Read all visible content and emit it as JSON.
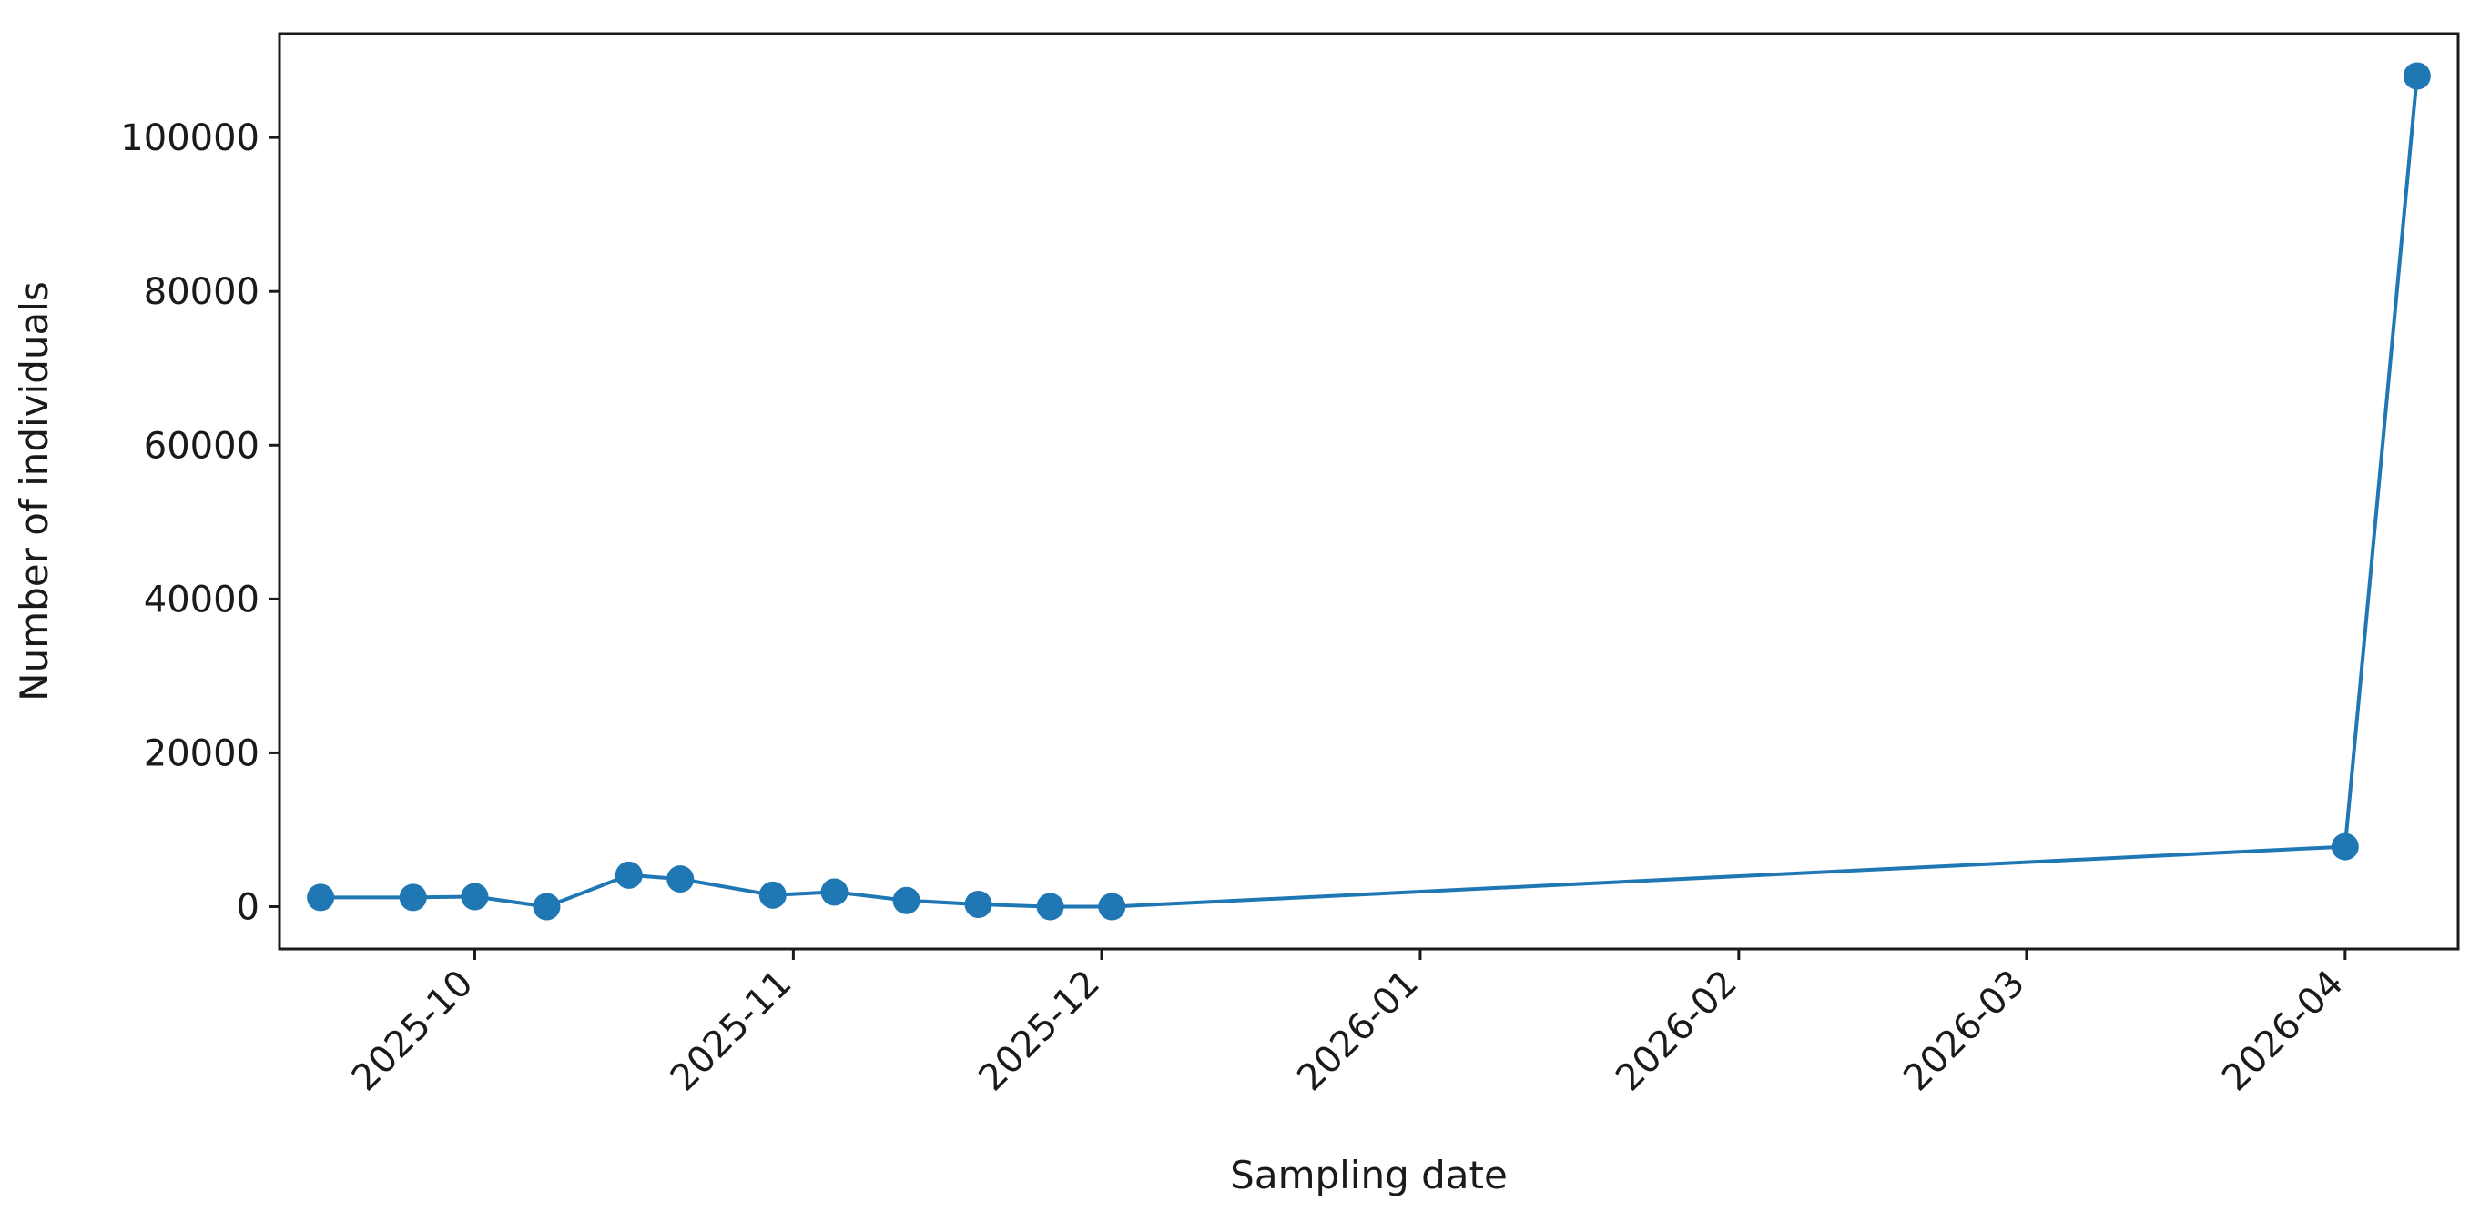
{
  "chart_data": {
    "type": "line",
    "title": "",
    "xlabel": "Sampling date",
    "ylabel": "Number of individuals",
    "x_axis_type": "date",
    "xlim": [
      "2025-09-12",
      "2026-04-12"
    ],
    "ylim": [
      -5500,
      113500
    ],
    "x_ticks": [
      {
        "date": "2025-10-01",
        "label": "2025-10"
      },
      {
        "date": "2025-11-01",
        "label": "2025-11"
      },
      {
        "date": "2025-12-01",
        "label": "2025-12"
      },
      {
        "date": "2026-01-01",
        "label": "2026-01"
      },
      {
        "date": "2026-02-01",
        "label": "2026-02"
      },
      {
        "date": "2026-03-01",
        "label": "2026-03"
      },
      {
        "date": "2026-04-01",
        "label": "2026-04"
      }
    ],
    "y_ticks": [
      0,
      20000,
      40000,
      60000,
      80000,
      100000
    ],
    "grid": false,
    "legend": "none",
    "series": [
      {
        "color": "#1f77b4",
        "marker": "circle",
        "points": [
          {
            "x": "2025-09-16",
            "y": 1200
          },
          {
            "x": "2025-09-25",
            "y": 1200
          },
          {
            "x": "2025-10-01",
            "y": 1300
          },
          {
            "x": "2025-10-08",
            "y": 0
          },
          {
            "x": "2025-10-16",
            "y": 4100
          },
          {
            "x": "2025-10-21",
            "y": 3600
          },
          {
            "x": "2025-10-30",
            "y": 1500
          },
          {
            "x": "2025-11-05",
            "y": 1900
          },
          {
            "x": "2025-11-12",
            "y": 800
          },
          {
            "x": "2025-11-19",
            "y": 300
          },
          {
            "x": "2025-11-26",
            "y": 0
          },
          {
            "x": "2025-12-02",
            "y": 0
          },
          {
            "x": "2026-04-01",
            "y": 7800
          },
          {
            "x": "2026-04-08",
            "y": 108000
          }
        ]
      }
    ]
  }
}
